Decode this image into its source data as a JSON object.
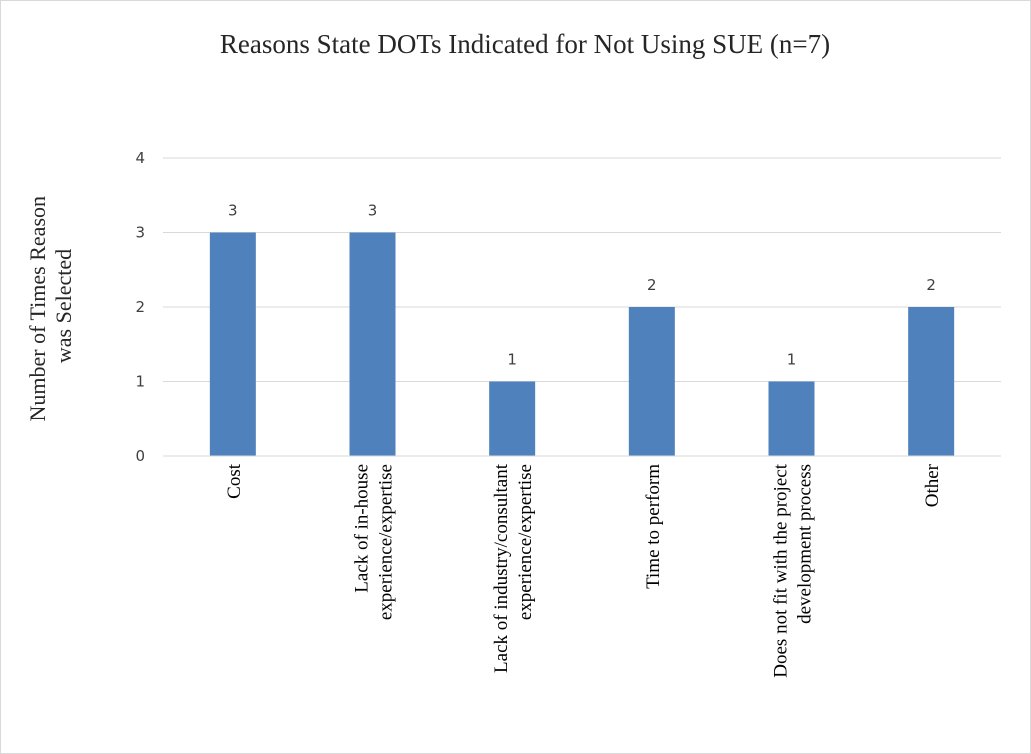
{
  "chart_data": {
    "type": "bar",
    "title": "Reasons State DOTs Indicated for Not Using SUE (n=7)",
    "xlabel": "",
    "ylabel": [
      "Number of Times Reason",
      "was Selected"
    ],
    "categories": [
      [
        "Cost"
      ],
      [
        "Lack of in-house",
        "experience/expertise"
      ],
      [
        "Lack of industry/consultant",
        "experience/expertise"
      ],
      [
        "Time to perform"
      ],
      [
        "Does not fit with the project",
        "development process"
      ],
      [
        "Other"
      ]
    ],
    "values": [
      3,
      3,
      1,
      2,
      1,
      2
    ],
    "data_labels": [
      "3",
      "3",
      "1",
      "2",
      "1",
      "2"
    ],
    "ylim": [
      0,
      4
    ],
    "yticks": [
      0,
      1,
      2,
      3,
      4
    ],
    "ytick_labels": [
      "0",
      "1",
      "2",
      "3",
      "4"
    ],
    "grid": true,
    "legend": "none",
    "colors": {
      "bar": "#4f81bd",
      "grid": "#d9d9d9",
      "axis": "#d9d9d9"
    }
  }
}
